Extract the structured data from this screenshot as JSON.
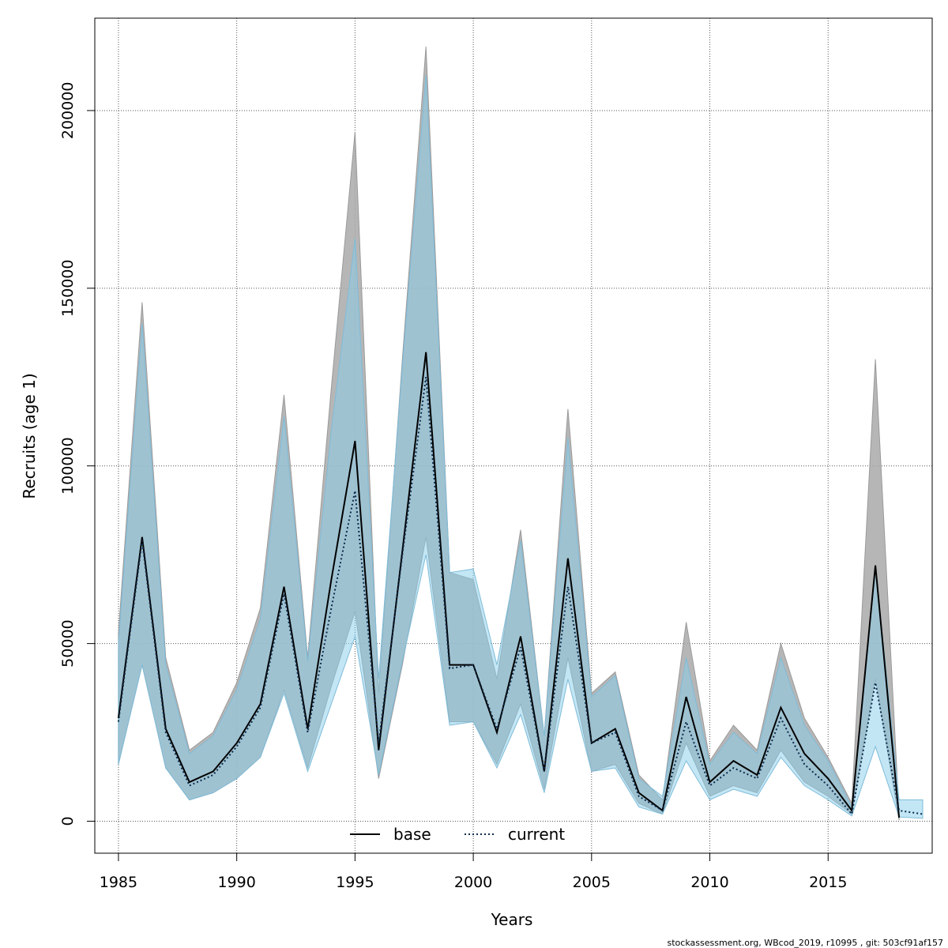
{
  "chart_data": {
    "type": "line",
    "xlabel": "Years",
    "ylabel": "Recruits (age 1)",
    "xlim": [
      1984,
      2019.4
    ],
    "ylim": [
      -9000,
      226000
    ],
    "x_ticks": [
      1985,
      1990,
      1995,
      2000,
      2005,
      2010,
      2015
    ],
    "y_ticks": [
      0,
      50000,
      100000,
      150000,
      200000
    ],
    "grid": true,
    "legend_position": "bottom-center",
    "series": [
      {
        "name": "base",
        "style": "solid",
        "line_color": "#000000",
        "band_color": "#a9a9a9",
        "x": [
          1985,
          1986,
          1987,
          1988,
          1989,
          1990,
          1991,
          1992,
          1993,
          1994,
          1995,
          1996,
          1997,
          1998,
          1999,
          2000,
          2001,
          2002,
          2003,
          2004,
          2005,
          2006,
          2007,
          2008,
          2009,
          2010,
          2011,
          2012,
          2013,
          2014,
          2015,
          2016,
          2017,
          2018
        ],
        "values": [
          29000,
          80000,
          26000,
          11000,
          14000,
          22000,
          33000,
          66000,
          26000,
          68000,
          107000,
          20000,
          76000,
          132000,
          44000,
          44000,
          25000,
          52000,
          14000,
          74000,
          22000,
          26000,
          8000,
          3000,
          35000,
          11000,
          17000,
          13000,
          32000,
          19000,
          12000,
          3000,
          72000,
          1000
        ],
        "lower": [
          16000,
          44000,
          15000,
          6000,
          8000,
          12000,
          18000,
          37000,
          15000,
          38000,
          59000,
          12000,
          44000,
          80000,
          28000,
          28000,
          16000,
          33000,
          9000,
          46000,
          14000,
          16000,
          5000,
          2000,
          22000,
          7000,
          10000,
          8000,
          20000,
          11000,
          7000,
          2000,
          40000,
          300
        ],
        "upper": [
          53000,
          146000,
          46000,
          20000,
          25000,
          39000,
          60000,
          120000,
          46000,
          122000,
          194000,
          36000,
          130000,
          218000,
          70000,
          68000,
          40000,
          82000,
          24000,
          116000,
          36000,
          42000,
          13000,
          6000,
          56000,
          17000,
          27000,
          20000,
          50000,
          29000,
          18000,
          5000,
          130000,
          2000
        ]
      },
      {
        "name": "current",
        "style": "dotted",
        "line_color": "#0d2a4a",
        "band_color": "#87ceeb",
        "x": [
          1985,
          1986,
          1987,
          1988,
          1989,
          1990,
          1991,
          1992,
          1993,
          1994,
          1995,
          1996,
          1997,
          1998,
          1999,
          2000,
          2001,
          2002,
          2003,
          2004,
          2005,
          2006,
          2007,
          2008,
          2009,
          2010,
          2011,
          2012,
          2013,
          2014,
          2015,
          2016,
          2017,
          2018,
          2019
        ],
        "values": [
          28000,
          79000,
          25000,
          10000,
          13000,
          21000,
          32000,
          64000,
          25000,
          60000,
          93000,
          22000,
          75000,
          125000,
          43000,
          44000,
          26000,
          49000,
          14000,
          66000,
          22000,
          25000,
          7000,
          3000,
          28000,
          10000,
          15000,
          12000,
          29000,
          16000,
          10000,
          2000,
          39000,
          3000,
          2000
        ],
        "lower": [
          16000,
          44000,
          15000,
          6000,
          8000,
          12000,
          18000,
          36000,
          14000,
          33000,
          52000,
          13000,
          45000,
          75000,
          27000,
          28000,
          15000,
          30000,
          8000,
          40000,
          14000,
          15000,
          4000,
          2000,
          17000,
          6000,
          9000,
          7000,
          18000,
          10000,
          6000,
          1500,
          21000,
          1200,
          800
        ],
        "upper": [
          50000,
          140000,
          44000,
          19000,
          24000,
          37000,
          57000,
          114000,
          45000,
          110000,
          164000,
          40000,
          128000,
          210000,
          70000,
          71000,
          44000,
          79000,
          24000,
          108000,
          35000,
          41000,
          12000,
          7000,
          46000,
          16000,
          25000,
          19000,
          46000,
          27000,
          17000,
          4000,
          72000,
          6000,
          6000
        ]
      }
    ]
  },
  "legend": {
    "items": [
      {
        "label": "base"
      },
      {
        "label": "current"
      }
    ]
  },
  "footer": {
    "credit": "stockassessment.org, WBcod_2019, r10995 , git: 503cf91af157"
  }
}
